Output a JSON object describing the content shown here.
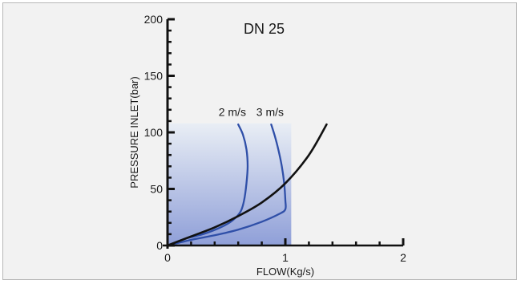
{
  "chart_data": {
    "type": "line",
    "title": "DN 25",
    "xlabel": "FLOW(Kg/s)",
    "ylabel": "PRESSURE INLET(bar)",
    "xlim": [
      0,
      2
    ],
    "ylim": [
      0,
      200
    ],
    "x_ticks": [
      "0",
      "1",
      "2"
    ],
    "y_ticks": [
      "0",
      "50",
      "100",
      "150",
      "200"
    ],
    "x_ticks_values": [
      0,
      1,
      2
    ],
    "y_ticks_values": [
      0,
      50,
      100,
      150,
      200
    ],
    "shaded_region": {
      "x": [
        0,
        1.05
      ],
      "y": [
        0,
        108
      ]
    },
    "colors": {
      "velocity_curve": "#2f4fa8",
      "flow_curve": "#111111",
      "shade_top": "#e9eef5",
      "shade_bottom": "#8f9fd8",
      "background": "#f2f2f2"
    },
    "series": [
      {
        "name": "2 m/s",
        "color": "#2f4fa8",
        "x": [
          0,
          0.15,
          0.3,
          0.45,
          0.55,
          0.62,
          0.65,
          0.67,
          0.68,
          0.67,
          0.64,
          0.6
        ],
        "y": [
          0,
          6,
          10,
          16,
          22,
          30,
          40,
          55,
          70,
          85,
          98,
          107
        ]
      },
      {
        "name": "3 m/s",
        "color": "#2f4fa8",
        "x": [
          0,
          0.2,
          0.4,
          0.6,
          0.8,
          0.95,
          1.0,
          1.0,
          0.99,
          0.97,
          0.94,
          0.91,
          0.88
        ],
        "y": [
          0,
          5,
          9,
          14,
          21,
          28,
          32,
          40,
          55,
          70,
          85,
          97,
          107
        ]
      },
      {
        "name": "",
        "color": "#111111",
        "x": [
          0,
          0.2,
          0.4,
          0.6,
          0.8,
          1.0,
          1.2,
          1.35
        ],
        "y": [
          0,
          8,
          16,
          26,
          38,
          55,
          80,
          107
        ]
      }
    ],
    "annotations": [
      {
        "text": "2 m/s",
        "x": 0.55,
        "y": 118
      },
      {
        "text": "3 m/s",
        "x": 0.87,
        "y": 118
      }
    ],
    "grid": false,
    "legend": "none"
  }
}
